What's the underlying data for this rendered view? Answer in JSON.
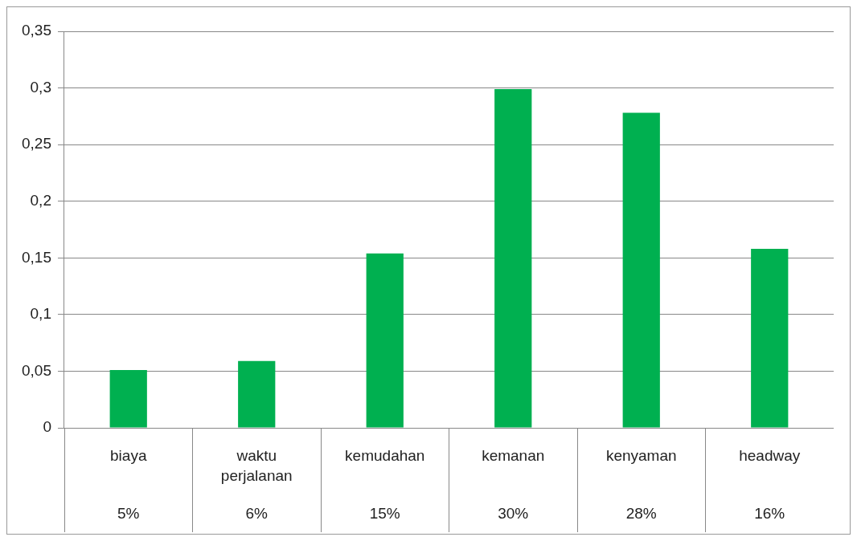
{
  "chart_data": {
    "type": "bar",
    "categories": [
      "biaya",
      "waktu perjalanan",
      "kemudahan",
      "kemanan",
      "kenyaman",
      "headway"
    ],
    "values": [
      0.051,
      0.059,
      0.154,
      0.299,
      0.278,
      0.158
    ],
    "value_labels": [
      "5%",
      "6%",
      "15%",
      "30%",
      "28%",
      "16%"
    ],
    "color": "#00b050",
    "ylim": [
      0,
      0.35
    ],
    "yticks": [
      {
        "value": 0,
        "label": "0"
      },
      {
        "value": 0.05,
        "label": "0,05"
      },
      {
        "value": 0.1,
        "label": "0,1"
      },
      {
        "value": 0.15,
        "label": "0,15"
      },
      {
        "value": 0.2,
        "label": "0,2"
      },
      {
        "value": 0.25,
        "label": "0,25"
      },
      {
        "value": 0.3,
        "label": "0,3"
      },
      {
        "value": 0.35,
        "label": "0,35"
      }
    ],
    "grid": "y"
  }
}
